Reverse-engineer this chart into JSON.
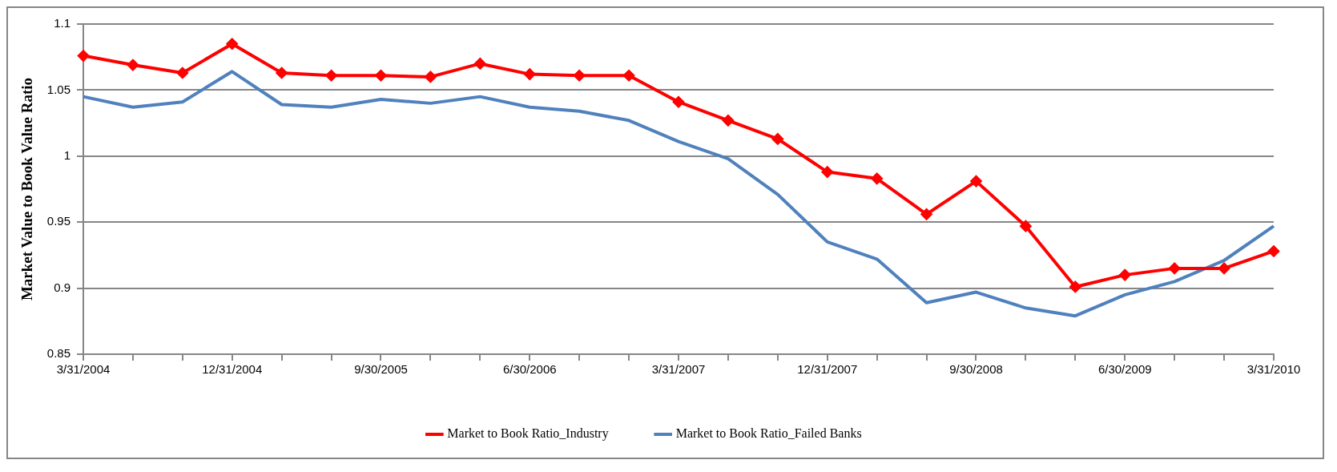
{
  "chart_data": {
    "type": "line",
    "ylabel": "Market Value to Book Value Ratio",
    "categories": [
      "3/31/2004",
      null,
      null,
      "12/31/2004",
      null,
      null,
      "9/30/2005",
      null,
      null,
      "6/30/2006",
      null,
      null,
      "3/31/2007",
      null,
      null,
      "12/31/2007",
      null,
      null,
      "9/30/2008",
      null,
      null,
      "6/30/2009",
      null,
      null,
      "3/31/2010"
    ],
    "series": [
      {
        "name": "Market to Book Ratio_Industry",
        "color": "#ff0000",
        "marker": "diamond",
        "values": [
          1.076,
          1.069,
          1.063,
          1.085,
          1.063,
          1.061,
          1.061,
          1.06,
          1.07,
          1.062,
          1.061,
          1.061,
          1.041,
          1.027,
          1.013,
          0.988,
          0.983,
          0.956,
          0.981,
          0.947,
          0.901,
          0.91,
          0.915,
          0.915,
          0.928
        ]
      },
      {
        "name": "Market to Book Ratio_Failed Banks",
        "color": "#4f81bd",
        "marker": "none",
        "values": [
          1.045,
          1.037,
          1.041,
          1.064,
          1.039,
          1.037,
          1.043,
          1.04,
          1.045,
          1.037,
          1.034,
          1.027,
          1.011,
          0.998,
          0.971,
          0.935,
          0.922,
          0.889,
          0.897,
          0.885,
          0.879,
          0.895,
          0.905,
          0.921,
          0.947
        ]
      }
    ],
    "ylim": [
      0.85,
      1.1
    ],
    "yticks": [
      0.85,
      0.9,
      0.95,
      1,
      1.05,
      1.1
    ],
    "grid": "y",
    "legend": "bottom",
    "line_style": "solid"
  }
}
